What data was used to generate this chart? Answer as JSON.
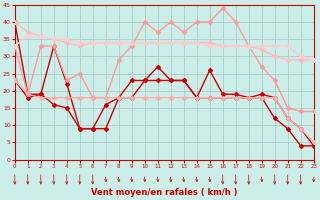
{
  "x": [
    0,
    1,
    2,
    3,
    4,
    5,
    6,
    7,
    8,
    9,
    10,
    11,
    12,
    13,
    14,
    15,
    16,
    17,
    18,
    19,
    20,
    21,
    22,
    23
  ],
  "series": [
    {
      "y": [
        40,
        19,
        19,
        33,
        22,
        9,
        9,
        9,
        18,
        18,
        23,
        23,
        23,
        23,
        18,
        26,
        19,
        19,
        18,
        18,
        12,
        9,
        4,
        4
      ],
      "color": "#cc0000",
      "lw": 1.0,
      "marker": "D",
      "ms": 2.0
    },
    {
      "y": [
        23,
        18,
        19,
        16,
        15,
        9,
        9,
        16,
        18,
        23,
        23,
        27,
        23,
        23,
        18,
        18,
        18,
        18,
        18,
        19,
        18,
        12,
        9,
        4
      ],
      "color": "#cc0000",
      "lw": 1.0,
      "marker": "D",
      "ms": 2.0
    },
    {
      "y": [
        33,
        19,
        33,
        33,
        23,
        25,
        18,
        18,
        29,
        33,
        40,
        37,
        40,
        37,
        40,
        40,
        44,
        40,
        33,
        27,
        23,
        15,
        14,
        14
      ],
      "color": "#ff9999",
      "lw": 1.0,
      "marker": "D",
      "ms": 2.0
    },
    {
      "y": [
        40,
        37,
        36,
        35,
        34,
        33,
        34,
        34,
        34,
        34,
        34,
        34,
        34,
        34,
        34,
        34,
        33,
        33,
        33,
        32,
        30,
        29,
        29,
        29
      ],
      "color": "#ffbbbb",
      "lw": 1.0,
      "marker": "D",
      "ms": 2.0
    },
    {
      "y": [
        33,
        36,
        36,
        35,
        35,
        34,
        34,
        34,
        34,
        34,
        34,
        34,
        34,
        34,
        34,
        33,
        33,
        33,
        33,
        33,
        33,
        33,
        30,
        29
      ],
      "color": "#ffcccc",
      "lw": 1.0,
      "marker": "D",
      "ms": 2.0
    },
    {
      "y": [
        23,
        19,
        18,
        18,
        18,
        18,
        18,
        18,
        18,
        18,
        18,
        18,
        18,
        18,
        18,
        18,
        18,
        18,
        18,
        18,
        18,
        12,
        9,
        5
      ],
      "color": "#ffaaaa",
      "lw": 1.0,
      "marker": "D",
      "ms": 2.0
    }
  ],
  "arrow_angles": [
    0,
    0,
    0,
    0,
    0,
    0,
    0,
    45,
    45,
    45,
    45,
    45,
    45,
    45,
    45,
    45,
    0,
    0,
    0,
    45,
    0,
    0,
    0,
    -45
  ],
  "xlabel": "Vent moyen/en rafales ( km/h )",
  "xlim": [
    0,
    23
  ],
  "ylim": [
    0,
    45
  ],
  "yticks": [
    0,
    5,
    10,
    15,
    20,
    25,
    30,
    35,
    40,
    45
  ],
  "xticks": [
    0,
    1,
    2,
    3,
    4,
    5,
    6,
    7,
    8,
    9,
    10,
    11,
    12,
    13,
    14,
    15,
    16,
    17,
    18,
    19,
    20,
    21,
    22,
    23
  ],
  "bg_color": "#cceee8",
  "grid_color": "#aacccc",
  "tick_color": "#cc0000",
  "axis_color": "#cc0000",
  "arrow_color": "#cc0000"
}
